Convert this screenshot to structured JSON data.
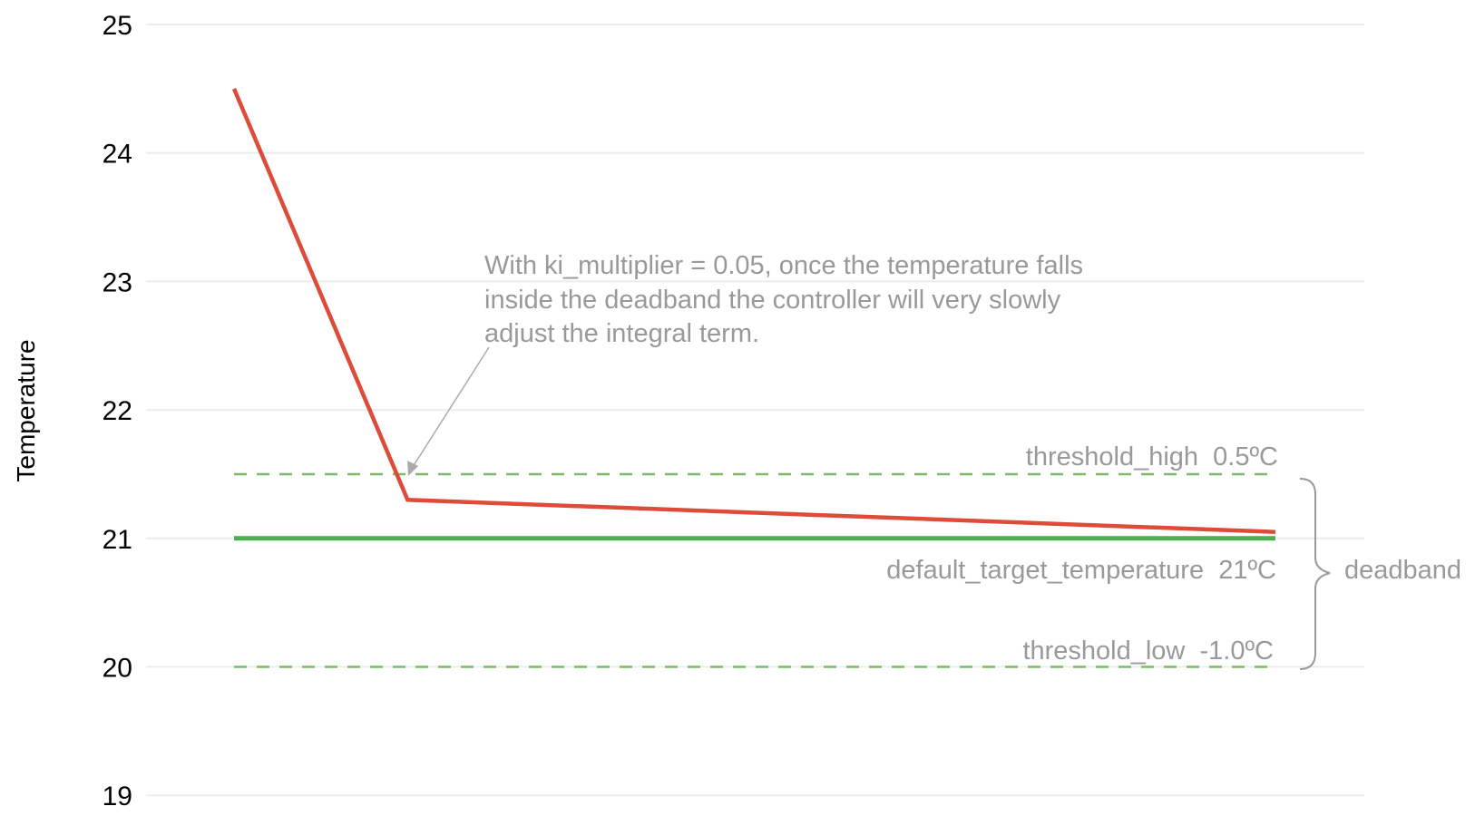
{
  "chart_data": {
    "type": "line",
    "title": "",
    "xlabel": "",
    "ylabel": "Temperature",
    "ylim": [
      19,
      25
    ],
    "yticks": [
      "19",
      "20",
      "21",
      "22",
      "23",
      "24",
      "25"
    ],
    "grid": true,
    "x": [
      0,
      1,
      6
    ],
    "series": [
      {
        "values": [
          24.5,
          21.3,
          21.05
        ],
        "color": "#dd4b39"
      }
    ],
    "reference_lines": [
      {
        "y": 21,
        "style": "solid",
        "color": "#4caf50",
        "label": "default_target_temperature  21ºC"
      },
      {
        "y": 21.5,
        "style": "dashed",
        "color": "#7cb96a",
        "label": "threshold_high  0.5ºC"
      },
      {
        "y": 20,
        "style": "dashed",
        "color": "#7cb96a",
        "label": "threshold_low  -1.0ºC"
      }
    ],
    "brace_label": "deadband",
    "annotation": {
      "lines": [
        "With ki_multiplier = 0.05, once the temperature falls",
        "inside the deadband the controller will very slowly",
        "adjust the integral term."
      ],
      "color": "#999999"
    }
  }
}
